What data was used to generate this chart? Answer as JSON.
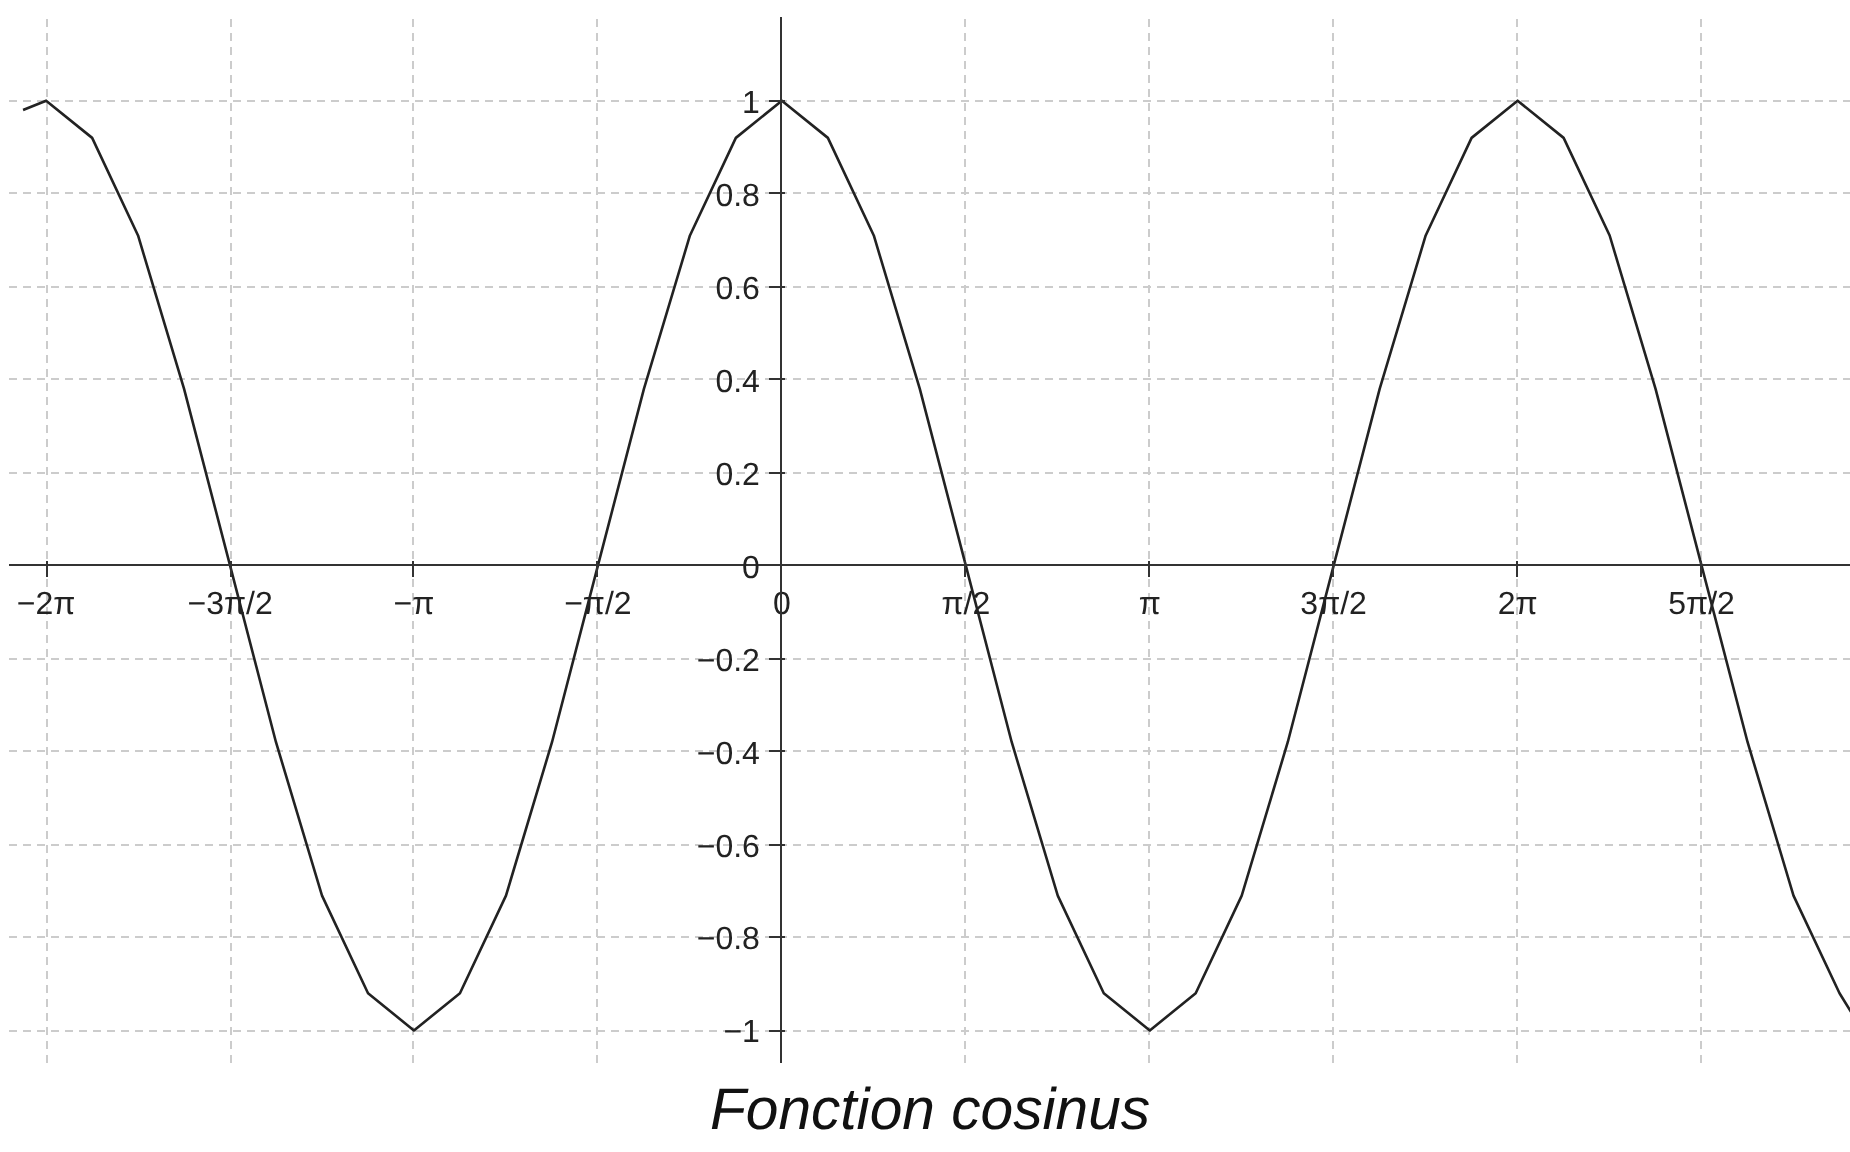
{
  "chart_data": {
    "type": "line",
    "title": "Fonction cosinus",
    "x": [
      -6.48,
      -6.283,
      -5.89,
      -5.498,
      -5.105,
      -4.712,
      -4.32,
      -3.927,
      -3.534,
      -3.142,
      -2.749,
      -2.356,
      -1.963,
      -1.571,
      -1.178,
      -0.785,
      -0.393,
      0,
      0.393,
      0.785,
      1.178,
      1.571,
      1.963,
      2.356,
      2.749,
      3.142,
      3.534,
      3.927,
      4.32,
      4.712,
      5.105,
      5.498,
      5.89,
      6.283,
      6.676,
      7.069,
      7.461,
      7.854,
      8.247,
      8.639,
      9.032,
      9.13
    ],
    "series": [
      {
        "color": "#222222",
        "values": [
          0.98,
          1,
          0.92,
          0.71,
          0.38,
          0,
          -0.38,
          -0.71,
          -0.92,
          -1,
          -0.92,
          -0.71,
          -0.38,
          0,
          0.38,
          0.71,
          0.92,
          1,
          0.92,
          0.71,
          0.38,
          0,
          -0.38,
          -0.71,
          -0.92,
          -1,
          -0.92,
          -0.71,
          -0.38,
          0,
          0.38,
          0.71,
          0.92,
          1,
          0.92,
          0.71,
          0.38,
          0,
          -0.38,
          -0.71,
          -0.92,
          -0.96
        ]
      }
    ],
    "xlim": [
      -6.6,
      9.13
    ],
    "ylim": [
      -1.07,
      1.18
    ],
    "xticks": [
      {
        "value": -6.283,
        "label": "−2π"
      },
      {
        "value": -4.712,
        "label": "−3π/2"
      },
      {
        "value": -3.142,
        "label": "−π"
      },
      {
        "value": -1.571,
        "label": "−π/2"
      },
      0,
      {
        "value": 1.571,
        "label": "π/2"
      },
      {
        "value": 3.142,
        "label": "π"
      },
      {
        "value": 4.712,
        "label": "3π/2"
      },
      {
        "value": 6.283,
        "label": "2π"
      },
      {
        "value": 7.854,
        "label": "5π/2"
      }
    ],
    "yticks": [
      {
        "value": -1,
        "label": "−1"
      },
      {
        "value": -0.8,
        "label": "−0.8"
      },
      {
        "value": -0.6,
        "label": "−0.6"
      },
      {
        "value": -0.4,
        "label": "−0.4"
      },
      {
        "value": -0.2,
        "label": "−0.2"
      },
      0,
      0.2,
      0.4,
      0.6,
      0.8,
      1
    ],
    "grid": true,
    "line_style": "solid"
  }
}
